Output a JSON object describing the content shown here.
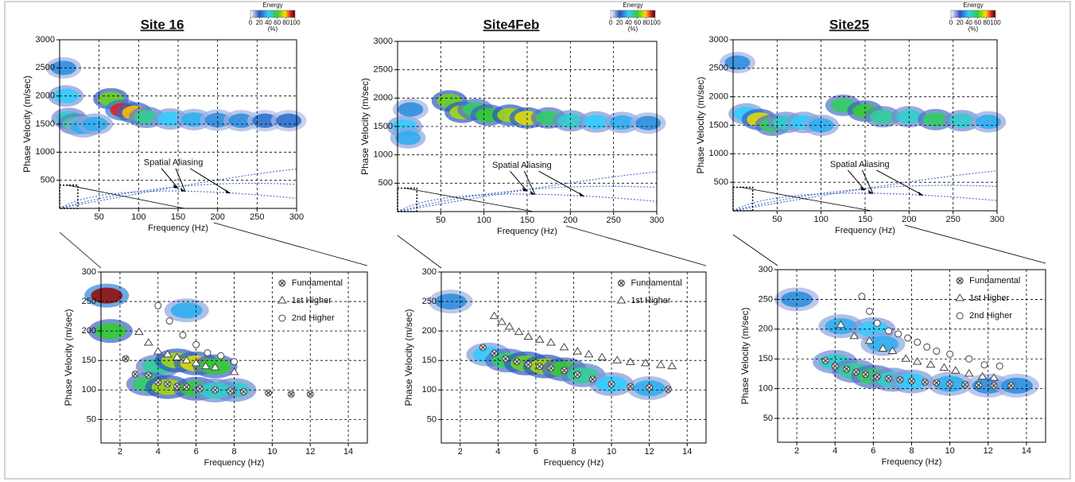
{
  "chart_data": [
    {
      "type": "heatmap",
      "title": "Site 16",
      "xlabel": "Frequency (Hz)",
      "ylabel": "Phase Velocity (m/sec)",
      "xlim": [
        0,
        300
      ],
      "xticks": [
        50,
        100,
        150,
        200,
        250,
        300
      ],
      "ylim": [
        0,
        3000
      ],
      "yticks": [
        500,
        1000,
        1500,
        2000,
        2500,
        3000
      ],
      "grid": true,
      "colorbar": {
        "label": "Energy",
        "unit": "(%)",
        "ticks": [
          0,
          20,
          40,
          60,
          80,
          100
        ]
      },
      "annotation": "Spatial Aliasing",
      "energy": {
        "x": [
          5,
          8,
          12,
          20,
          30,
          45,
          65,
          80,
          95,
          110,
          140,
          170,
          200,
          230,
          260,
          290
        ],
        "y": [
          2500,
          2000,
          1600,
          1500,
          1450,
          1500,
          1950,
          1750,
          1700,
          1620,
          1590,
          1580,
          1570,
          1560,
          1560,
          1560
        ],
        "values": [
          30,
          40,
          45,
          50,
          35,
          35,
          65,
          90,
          80,
          50,
          40,
          35,
          30,
          30,
          25,
          25
        ]
      }
    },
    {
      "type": "heatmap",
      "title": "Site4Feb",
      "xlabel": "Frequency (Hz)",
      "ylabel": "Phase Velocity (m/sec)",
      "xlim": [
        0,
        300
      ],
      "xticks": [
        50,
        100,
        150,
        200,
        250,
        300
      ],
      "ylim": [
        0,
        3000
      ],
      "yticks": [
        500,
        1000,
        1500,
        2000,
        2500,
        3000
      ],
      "grid": true,
      "colorbar": {
        "label": "Energy",
        "unit": "(%)",
        "ticks": [
          0,
          20,
          40,
          60,
          80,
          100
        ]
      },
      "annotation": "Spatial Aliasing",
      "energy": {
        "x": [
          8,
          12,
          15,
          60,
          75,
          90,
          105,
          130,
          150,
          175,
          200,
          230,
          260,
          290
        ],
        "y": [
          1500,
          1300,
          1800,
          1950,
          1750,
          1800,
          1700,
          1700,
          1650,
          1650,
          1600,
          1580,
          1570,
          1560
        ],
        "values": [
          40,
          35,
          30,
          65,
          70,
          55,
          60,
          70,
          75,
          55,
          45,
          40,
          35,
          30
        ]
      }
    },
    {
      "type": "heatmap",
      "title": "Site25",
      "xlabel": "Frequency (Hz)",
      "ylabel": "Phase Velocity (m/sec)",
      "xlim": [
        0,
        300
      ],
      "xticks": [
        50,
        100,
        150,
        200,
        250,
        300
      ],
      "ylim": [
        0,
        3000
      ],
      "yticks": [
        500,
        1000,
        1500,
        2000,
        2500,
        3000
      ],
      "grid": true,
      "colorbar": {
        "label": "Energy",
        "unit": "(%)",
        "ticks": [
          0,
          20,
          40,
          60,
          80,
          100
        ]
      },
      "annotation": "Spatial Aliasing",
      "energy": {
        "x": [
          5,
          15,
          30,
          45,
          60,
          80,
          100,
          125,
          150,
          170,
          200,
          230,
          260,
          290
        ],
        "y": [
          2600,
          1700,
          1600,
          1500,
          1550,
          1550,
          1500,
          1850,
          1750,
          1650,
          1650,
          1600,
          1580,
          1560
        ],
        "values": [
          30,
          40,
          75,
          55,
          45,
          40,
          35,
          55,
          60,
          50,
          45,
          55,
          45,
          35
        ]
      }
    },
    {
      "type": "scatter",
      "xlabel": "Frequency (Hz)",
      "ylabel": "Phase Velocity (m/sec)",
      "xlim": [
        1,
        15
      ],
      "xticks": [
        2,
        4,
        6,
        8,
        10,
        12,
        14
      ],
      "ylim": [
        10,
        300
      ],
      "yticks": [
        50,
        100,
        150,
        200,
        250,
        300
      ],
      "grid": true,
      "energy": {
        "x": [
          1.3,
          1.5,
          4,
          5,
          6,
          7,
          8,
          5.5,
          3.5,
          4.5,
          6,
          7
        ],
        "y": [
          260,
          200,
          140,
          150,
          145,
          140,
          100,
          235,
          110,
          105,
          102,
          99
        ],
        "values": [
          95,
          60,
          50,
          70,
          75,
          60,
          45,
          35,
          55,
          70,
          60,
          45
        ]
      },
      "series": [
        {
          "name": "Fundamental",
          "marker": "circle-x",
          "x": [
            2.3,
            2.8,
            3.5,
            4,
            4.5,
            5,
            5.5,
            6.2,
            7,
            7.8,
            8.5,
            9.8,
            11,
            12
          ],
          "values": [
            153,
            127,
            125,
            113,
            110,
            106,
            105,
            102,
            100,
            98,
            97,
            95,
            93,
            93
          ]
        },
        {
          "name": "1st Higher",
          "marker": "triangle",
          "x": [
            3,
            3.5,
            4,
            4.5,
            5,
            5.5,
            6,
            6.5,
            7,
            8
          ],
          "values": [
            198,
            180,
            165,
            160,
            155,
            150,
            145,
            140,
            138,
            130
          ]
        },
        {
          "name": "2nd Higher",
          "marker": "circle",
          "x": [
            4,
            4.6,
            5.3,
            6,
            6.6,
            7.3,
            8
          ],
          "values": [
            243,
            217,
            193,
            177,
            163,
            158,
            148
          ]
        }
      ]
    },
    {
      "type": "scatter",
      "xlabel": "Frequency (Hz)",
      "ylabel": "Phase Velocity (m/sec)",
      "xlim": [
        1,
        15
      ],
      "xticks": [
        2,
        4,
        6,
        8,
        10,
        12,
        14
      ],
      "ylim": [
        10,
        300
      ],
      "yticks": [
        50,
        100,
        150,
        200,
        250,
        300
      ],
      "grid": true,
      "energy": {
        "x": [
          3.5,
          4.5,
          5.5,
          6.5,
          7.5,
          8.5,
          10,
          12,
          1.5
        ],
        "y": [
          160,
          150,
          145,
          140,
          135,
          125,
          110,
          103,
          250
        ],
        "values": [
          40,
          55,
          65,
          70,
          60,
          50,
          40,
          35,
          30
        ]
      },
      "series": [
        {
          "name": "Fundamental",
          "marker": "circle-x",
          "x": [
            3.2,
            3.8,
            4.4,
            5,
            5.6,
            6.2,
            6.8,
            7.5,
            8.2,
            9,
            10,
            11,
            12,
            13
          ],
          "values": [
            172,
            162,
            153,
            148,
            143,
            140,
            137,
            133,
            126,
            118,
            110,
            106,
            104,
            101
          ]
        },
        {
          "name": "1st Higher",
          "marker": "triangle",
          "x": [
            3.8,
            4.2,
            4.6,
            5.1,
            5.6,
            6.2,
            6.8,
            7.5,
            8.2,
            8.8,
            9.5,
            10.3,
            11,
            11.8,
            12.6,
            13.2
          ],
          "values": [
            225,
            215,
            207,
            198,
            190,
            185,
            180,
            172,
            165,
            160,
            155,
            150,
            147,
            145,
            142,
            140
          ]
        }
      ]
    },
    {
      "type": "scatter",
      "xlabel": "Frequency (Hz)",
      "ylabel": "Phase Velocity (m/sec)",
      "xlim": [
        1,
        15
      ],
      "xticks": [
        2,
        4,
        6,
        8,
        10,
        12,
        14
      ],
      "ylim": [
        10,
        300
      ],
      "yticks": [
        50,
        100,
        150,
        200,
        250,
        300
      ],
      "grid": true,
      "energy": {
        "x": [
          4.3,
          6,
          6.5,
          4,
          5,
          6,
          7,
          8,
          10,
          12,
          13.5,
          2
        ],
        "y": [
          205,
          200,
          175,
          145,
          130,
          120,
          115,
          112,
          108,
          105,
          105,
          250
        ],
        "values": [
          35,
          40,
          35,
          45,
          50,
          55,
          45,
          40,
          35,
          30,
          30,
          30
        ]
      },
      "series": [
        {
          "name": "Fundamental",
          "marker": "circle-x",
          "x": [
            3.5,
            4,
            4.6,
            5.1,
            5.6,
            6.2,
            6.8,
            7.4,
            8,
            8.7,
            9.3,
            10,
            10.8,
            11.5,
            12.3,
            13.2
          ],
          "values": [
            147,
            138,
            133,
            128,
            124,
            120,
            117,
            115,
            113,
            111,
            110,
            108,
            107,
            106,
            105,
            105
          ]
        },
        {
          "name": "1st Higher",
          "marker": "triangle",
          "x": [
            4.3,
            5,
            5.8,
            6.5,
            7,
            7.7,
            8.3,
            9,
            9.7,
            10.3,
            11,
            11.7,
            12.3
          ],
          "values": [
            207,
            188,
            180,
            167,
            163,
            150,
            145,
            140,
            135,
            130,
            125,
            120,
            118
          ]
        },
        {
          "name": "2nd Higher",
          "marker": "circle",
          "x": [
            5.4,
            5.8,
            6.2,
            6.8,
            7.3,
            7.8,
            8.3,
            8.8,
            9.3,
            10,
            11,
            11.8,
            12.6
          ],
          "values": [
            255,
            230,
            210,
            197,
            192,
            185,
            178,
            170,
            163,
            158,
            150,
            140,
            138
          ]
        }
      ]
    }
  ]
}
